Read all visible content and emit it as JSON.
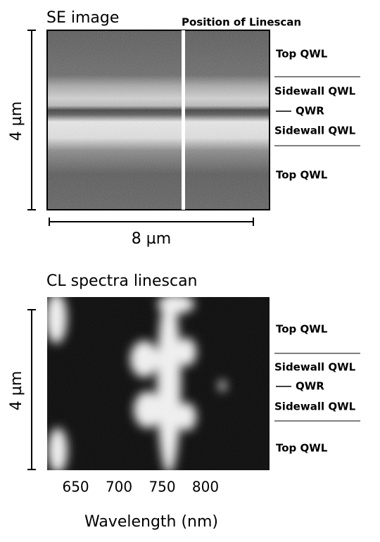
{
  "se_panel": {
    "title": "SE image",
    "marker_label": "Position of Linescan",
    "scale_vertical": "4 µm",
    "scale_horizontal": "8 µm",
    "labels": [
      "Top QWL",
      "Sidewall QWL",
      "QWR",
      "Sidewall QWL",
      "Top QWL"
    ]
  },
  "cl_panel": {
    "title": "CL spectra linescan",
    "scale_vertical": "4 µm",
    "labels": [
      "Top QWL",
      "Sidewall QWL",
      "QWR",
      "Sidewall QWL",
      "Top QWL"
    ],
    "x_axis": {
      "label": "Wavelength (nm)",
      "xlim": [
        617,
        874
      ],
      "xticks": [
        650,
        700,
        750,
        800
      ]
    }
  }
}
